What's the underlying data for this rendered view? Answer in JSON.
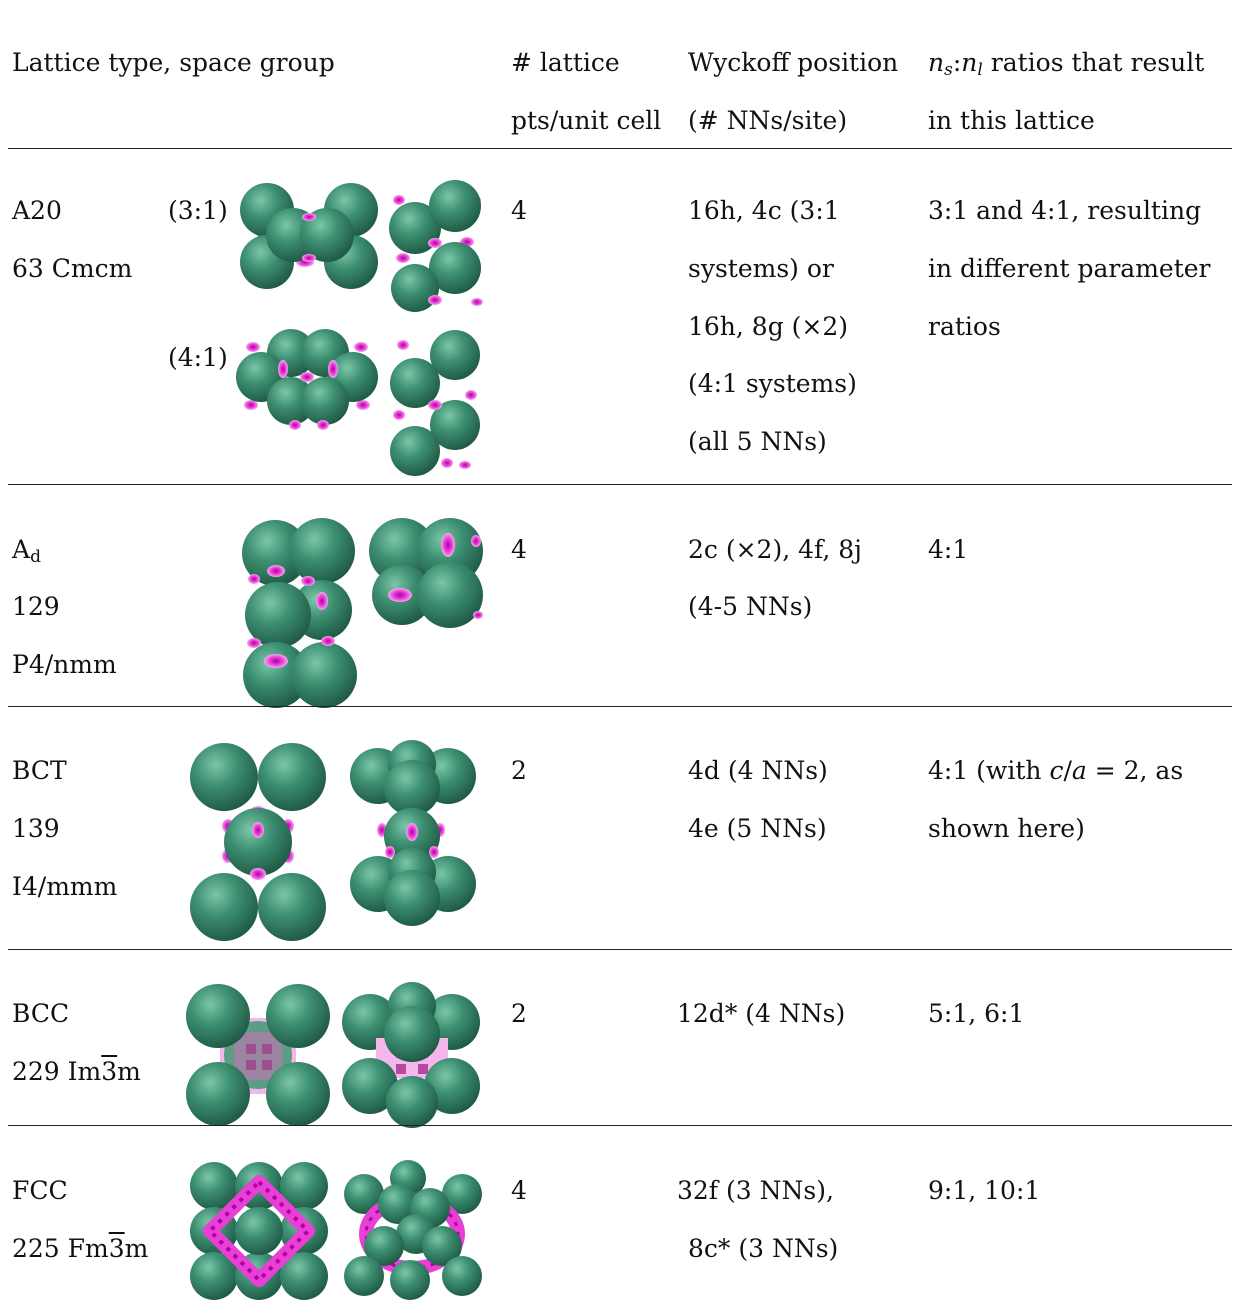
{
  "colors": {
    "sphere": "#3d8f72",
    "site": "#e83fd7",
    "rule": "#222222"
  },
  "header": {
    "col1": "Lattice type, space group",
    "col2_line1": "# lattice",
    "col2_line2": "pts/unit cell",
    "col3_line1": "Wyckoff position",
    "col3_line2": "(# NNs/site)",
    "col4_line1_var": "n",
    "col4_line1_sub1": "s",
    "col4_line1_sep": ":",
    "col4_line1_sub2": "l",
    "col4_line1_rest": " ratios that result",
    "col4_line2": "in this lattice"
  },
  "rows": [
    {
      "name_line1": "A20",
      "name_line2": "63 Cmcm",
      "image_label_1": "(3:1)",
      "image_label_2": "(4:1)",
      "points": "4",
      "wyckoff": [
        "16h, 4c (3:1",
        "systems) or",
        "16h, 8g (×2)",
        "(4:1 systems)",
        "(all 5 NNs)"
      ],
      "ratios": [
        "3:1 and 4:1, resulting",
        "in different parameter",
        "ratios"
      ]
    },
    {
      "name_line1": "A",
      "name_line1_sub": "d",
      "name_line2": "129",
      "name_line3": "P4/nmm",
      "points": "4",
      "wyckoff": [
        "2c (×2), 4f, 8j",
        "(4-5 NNs)"
      ],
      "ratios": [
        "4:1"
      ]
    },
    {
      "name_line1": "BCT",
      "name_line2": "139",
      "name_line3": "I4/mmm",
      "points": "2",
      "wyckoff": [
        "4d (4 NNs)",
        "4e (5 NNs)"
      ],
      "ratios_prefix": "4:1 (with ",
      "ratios_var1": "c",
      "ratios_slash": "/",
      "ratios_var2": "a",
      "ratios_suffix": " = 2, as",
      "ratios_line2": "shown here)"
    },
    {
      "name_line1": "BCC",
      "name_line2_pre": "229 Im",
      "name_line2_bar": "3",
      "name_line2_post": "m",
      "points": "2",
      "wyckoff": [
        "12d* (4 NNs)"
      ],
      "ratios": [
        "5:1, 6:1"
      ]
    },
    {
      "name_line1": "FCC",
      "name_line2_pre": "225 Fm",
      "name_line2_bar": "3",
      "name_line2_post": "m",
      "points": "4",
      "wyckoff": [
        "32f (3 NNs),",
        "8c* (3 NNs)"
      ],
      "ratios": [
        "9:1, 10:1"
      ]
    }
  ]
}
